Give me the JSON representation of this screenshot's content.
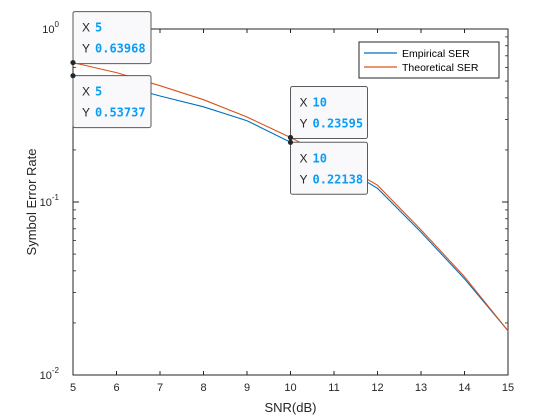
{
  "chart_data": {
    "type": "line",
    "xlabel": "SNR(dB)",
    "ylabel": "Symbol Error Rate",
    "xlim": [
      5,
      15
    ],
    "ylim": [
      0.01,
      1
    ],
    "yscale": "log",
    "x_ticks": [
      "5",
      "6",
      "7",
      "8",
      "9",
      "10",
      "11",
      "12",
      "13",
      "14",
      "15"
    ],
    "y_ticks": [
      {
        "base": "10",
        "exp": "0",
        "value": 1
      },
      {
        "base": "10",
        "exp": "-1",
        "value": 0.1
      },
      {
        "base": "10",
        "exp": "-2",
        "value": 0.01
      }
    ],
    "grid": false,
    "legend_position": "top-right",
    "x": [
      5,
      6,
      7,
      8,
      9,
      10,
      11,
      12,
      13,
      14,
      15
    ],
    "series": [
      {
        "name": "Empirical SER",
        "color": "#0072BD",
        "values": [
          0.53737,
          0.48,
          0.41,
          0.355,
          0.295,
          0.22138,
          0.17,
          0.12,
          0.067,
          0.036,
          0.018
        ]
      },
      {
        "name": "Theoretical SER",
        "color": "#D95319",
        "values": [
          0.63968,
          0.56,
          0.47,
          0.39,
          0.31,
          0.23595,
          0.175,
          0.125,
          0.069,
          0.037,
          0.018
        ]
      }
    ],
    "datatips": [
      {
        "x_key": "X",
        "y_key": "Y",
        "x_value": "5",
        "y_value": "0.63968",
        "x": 5,
        "y": 0.63968,
        "series": 1,
        "side": "above"
      },
      {
        "x_key": "X",
        "y_key": "Y",
        "x_value": "5",
        "y_value": "0.53737",
        "x": 5,
        "y": 0.53737,
        "series": 0,
        "side": "below"
      },
      {
        "x_key": "X",
        "y_key": "Y",
        "x_value": "10",
        "y_value": "0.23595",
        "x": 10,
        "y": 0.23595,
        "series": 1,
        "side": "above"
      },
      {
        "x_key": "X",
        "y_key": "Y",
        "x_value": "10",
        "y_value": "0.22138",
        "x": 10,
        "y": 0.22138,
        "series": 0,
        "side": "below"
      }
    ]
  }
}
